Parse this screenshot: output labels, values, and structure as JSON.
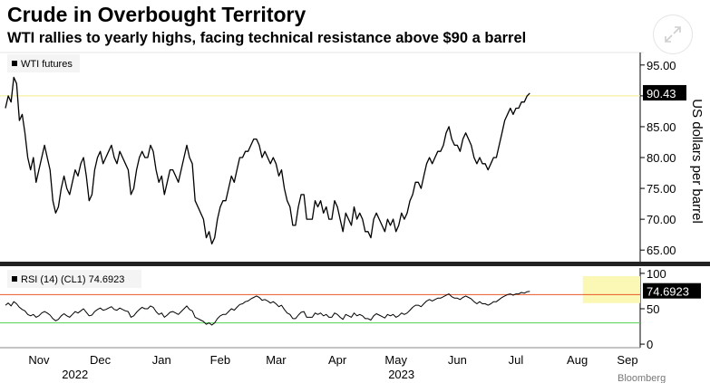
{
  "header": {
    "title": "Crude in Overbought Territory",
    "subtitle": "WTI rallies to yearly highs, facing technical resistance above $90 a barrel",
    "expand_icon": "expand-arrows-icon"
  },
  "footer": {
    "source": "Bloomberg"
  },
  "colors": {
    "price_line": "#000000",
    "reference_line": "#f2ee8a",
    "overbought_line": "#e8582a",
    "oversold_line": "#4fd24f",
    "highlight": "#fbf7b4",
    "label_bg": "#000000"
  },
  "chart_data": [
    {
      "type": "line",
      "name": "price-panel",
      "legend": "WTI futures",
      "ylabel": "US dollars per barrel",
      "ylim": [
        64,
        96
      ],
      "yticks": [
        65,
        70,
        75,
        80,
        85,
        90,
        95
      ],
      "ytick_labels": [
        "65.00",
        "70.00",
        "75.00",
        "80.00",
        "85.00",
        "90.00",
        "95.00"
      ],
      "reference_line": 90,
      "last_value": 90.43,
      "last_label": "90.43",
      "x_range": [
        0,
        223
      ],
      "series": [
        {
          "name": "WTI futures",
          "values": [
            88,
            90,
            89,
            93,
            92,
            86,
            87,
            84,
            80,
            78,
            80,
            76,
            78,
            80,
            82,
            80,
            78,
            73,
            71,
            72,
            75,
            77,
            75,
            74,
            76,
            78,
            77,
            79,
            80,
            77,
            73,
            74,
            78,
            80,
            81,
            79,
            80,
            81,
            82,
            80,
            79,
            81,
            80,
            79,
            78,
            74,
            75,
            78,
            80,
            81,
            80,
            80,
            82,
            81,
            78,
            76,
            77,
            74,
            76,
            78,
            78,
            77,
            76,
            78,
            80,
            82,
            80,
            79,
            73,
            72,
            71,
            70,
            67,
            68,
            66,
            67,
            70,
            72,
            73,
            73,
            75,
            77,
            76,
            78,
            80,
            80,
            81,
            81,
            82,
            83,
            83,
            82,
            80,
            81,
            80,
            79,
            80,
            79,
            77,
            78,
            75,
            73,
            72,
            69,
            69,
            72,
            74,
            74,
            70,
            70,
            70,
            73,
            72,
            73,
            71,
            72,
            70,
            70,
            73,
            72,
            70,
            68,
            71,
            70,
            69,
            72,
            70,
            71,
            70,
            68,
            68,
            67,
            70,
            71,
            70,
            69,
            68,
            70,
            69,
            70,
            68,
            69,
            71,
            70,
            71,
            73,
            74,
            76,
            76,
            75,
            77,
            79,
            80,
            79,
            80,
            81,
            81,
            82,
            84,
            85,
            83,
            82,
            82,
            81,
            83,
            84,
            83,
            82,
            80,
            79,
            80,
            79,
            79,
            78,
            79,
            80,
            80,
            82,
            84,
            86,
            87,
            88,
            87,
            88,
            88,
            89,
            89,
            90,
            90.43
          ],
          "x_start": 0
        }
      ],
      "x_dates_note": "Trading-day index from mid-Oct 2022 to early Sep 2023"
    },
    {
      "type": "line",
      "name": "rsi-panel",
      "legend": "RSI (14) (CL1) 74.6923",
      "ylim": [
        -5,
        105
      ],
      "yticks": [
        0,
        50,
        100
      ],
      "ytick_labels": [
        "0",
        "50",
        "100"
      ],
      "overbought": 70,
      "oversold": 30,
      "last_value": 74.6923,
      "last_label": "74.6923",
      "highlight_from_index": 207,
      "x_range": [
        0,
        223
      ],
      "series": [
        {
          "name": "RSI",
          "values": [
            55,
            58,
            54,
            60,
            57,
            52,
            49,
            47,
            42,
            40,
            42,
            38,
            40,
            44,
            46,
            44,
            41,
            36,
            33,
            35,
            40,
            43,
            40,
            38,
            42,
            46,
            44,
            47,
            50,
            45,
            40,
            41,
            46,
            49,
            51,
            48,
            49,
            51,
            53,
            49,
            48,
            51,
            49,
            47,
            46,
            38,
            40,
            45,
            49,
            52,
            50,
            50,
            54,
            52,
            46,
            42,
            44,
            38,
            41,
            45,
            46,
            44,
            42,
            46,
            50,
            54,
            49,
            47,
            38,
            36,
            34,
            32,
            28,
            30,
            27,
            30,
            36,
            40,
            42,
            42,
            46,
            50,
            48,
            52,
            56,
            57,
            60,
            61,
            64,
            66,
            68,
            66,
            62,
            63,
            61,
            58,
            60,
            57,
            53,
            55,
            49,
            44,
            42,
            36,
            36,
            41,
            45,
            46,
            38,
            38,
            38,
            44,
            42,
            44,
            40,
            42,
            38,
            38,
            44,
            42,
            38,
            35,
            42,
            40,
            38,
            44,
            40,
            42,
            40,
            36,
            36,
            34,
            40,
            43,
            41,
            39,
            37,
            42,
            40,
            42,
            38,
            40,
            44,
            42,
            44,
            48,
            52,
            55,
            55,
            53,
            57,
            61,
            63,
            61,
            63,
            65,
            65,
            67,
            69,
            71,
            67,
            65,
            65,
            63,
            66,
            68,
            66,
            64,
            60,
            57,
            60,
            57,
            57,
            55,
            57,
            60,
            60,
            63,
            66,
            68,
            70,
            71,
            69,
            71,
            71,
            73,
            72,
            74,
            74.6923
          ],
          "x_start": 0
        }
      ]
    }
  ],
  "x_axis": {
    "months": [
      "Nov",
      "Dec",
      "Jan",
      "Feb",
      "Mar",
      "Apr",
      "May",
      "Jun",
      "Jul",
      "Aug",
      "Sep"
    ],
    "month_index": [
      12,
      34,
      56,
      77,
      97,
      119,
      140,
      162,
      183,
      205,
      223
    ],
    "years": [
      "2022",
      "2023"
    ],
    "year_index": [
      23,
      140
    ]
  }
}
